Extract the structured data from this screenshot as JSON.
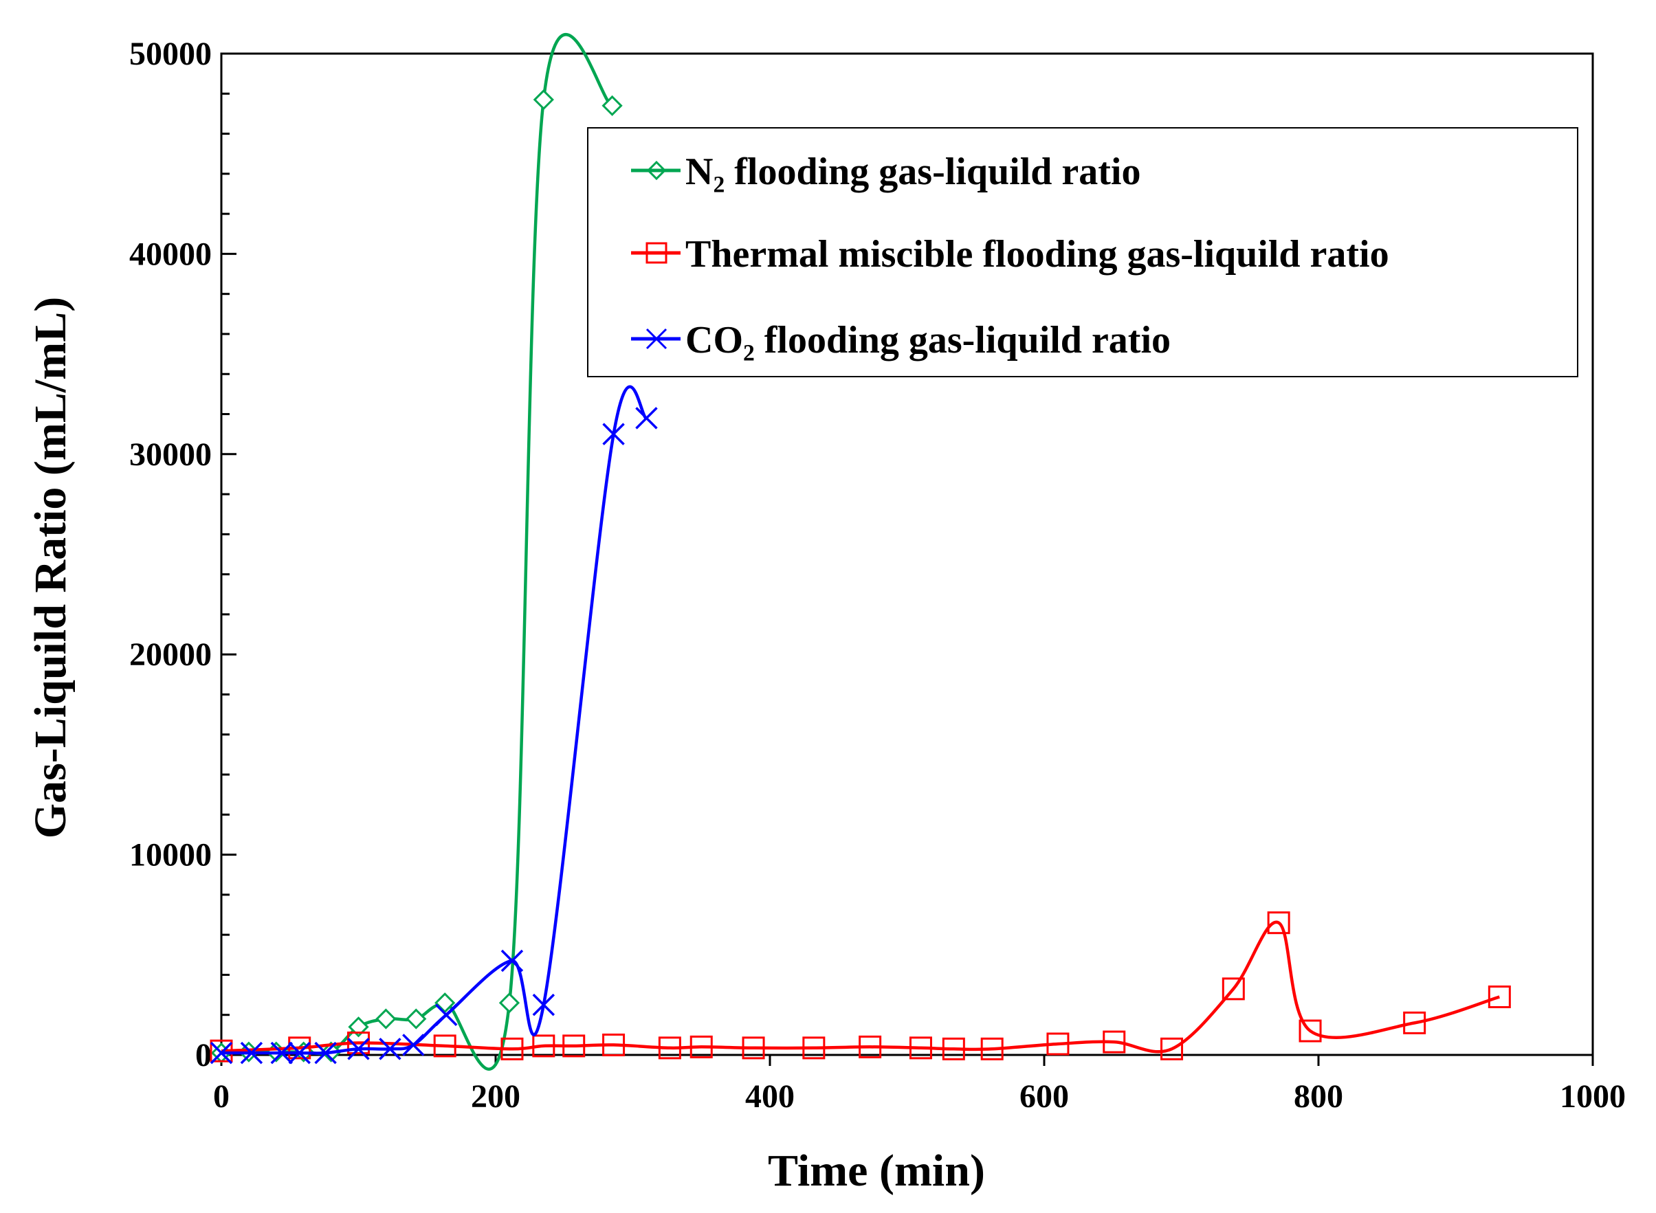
{
  "chart_data": {
    "type": "line",
    "title": "",
    "xlabel": "Time (min)",
    "ylabel": "Gas-Liquild Ratio (mL/mL)",
    "xlim": [
      0,
      1000
    ],
    "ylim": [
      0,
      50000
    ],
    "xticks": [
      0,
      200,
      400,
      600,
      800,
      1000
    ],
    "yticks": [
      0,
      10000,
      20000,
      30000,
      40000,
      50000
    ],
    "xtick_labels": [
      "0",
      "200",
      "400",
      "600",
      "800",
      "1000"
    ],
    "ytick_labels": [
      "0",
      "10000",
      "20000",
      "30000",
      "40000",
      "50000"
    ],
    "grid": false,
    "legend_position": "top-right",
    "series": [
      {
        "name": "N₂ flooding gas-liquild ratio",
        "color": "#00a651",
        "marker": "diamond",
        "x": [
          0,
          20,
          40,
          60,
          80,
          100,
          120,
          142,
          163,
          210,
          235,
          285
        ],
        "y": [
          100,
          150,
          150,
          150,
          150,
          1400,
          1800,
          1800,
          2600,
          2600,
          47700,
          47400
        ]
      },
      {
        "name": "Thermal miscible flooding gas-liquild ratio",
        "color": "#ff0000",
        "marker": "square",
        "x": [
          0,
          57,
          100,
          163,
          212,
          235,
          257,
          286,
          327,
          350,
          388,
          432,
          473,
          510,
          534,
          562,
          610,
          651,
          693,
          738,
          771,
          794,
          870,
          932
        ],
        "y": [
          200,
          350,
          600,
          450,
          300,
          450,
          450,
          500,
          350,
          400,
          350,
          350,
          400,
          350,
          300,
          300,
          550,
          650,
          300,
          3300,
          6600,
          1200,
          1600,
          2900
        ]
      },
      {
        "name": "CO₂ flooding gas-liquild ratio",
        "color": "#0000ff",
        "marker": "x",
        "x": [
          0,
          22,
          44,
          57,
          76,
          100,
          123,
          140,
          164,
          212,
          235,
          286,
          310
        ],
        "y": [
          100,
          100,
          100,
          100,
          100,
          300,
          300,
          500,
          2000,
          4700,
          2500,
          31000,
          31800
        ]
      }
    ]
  }
}
